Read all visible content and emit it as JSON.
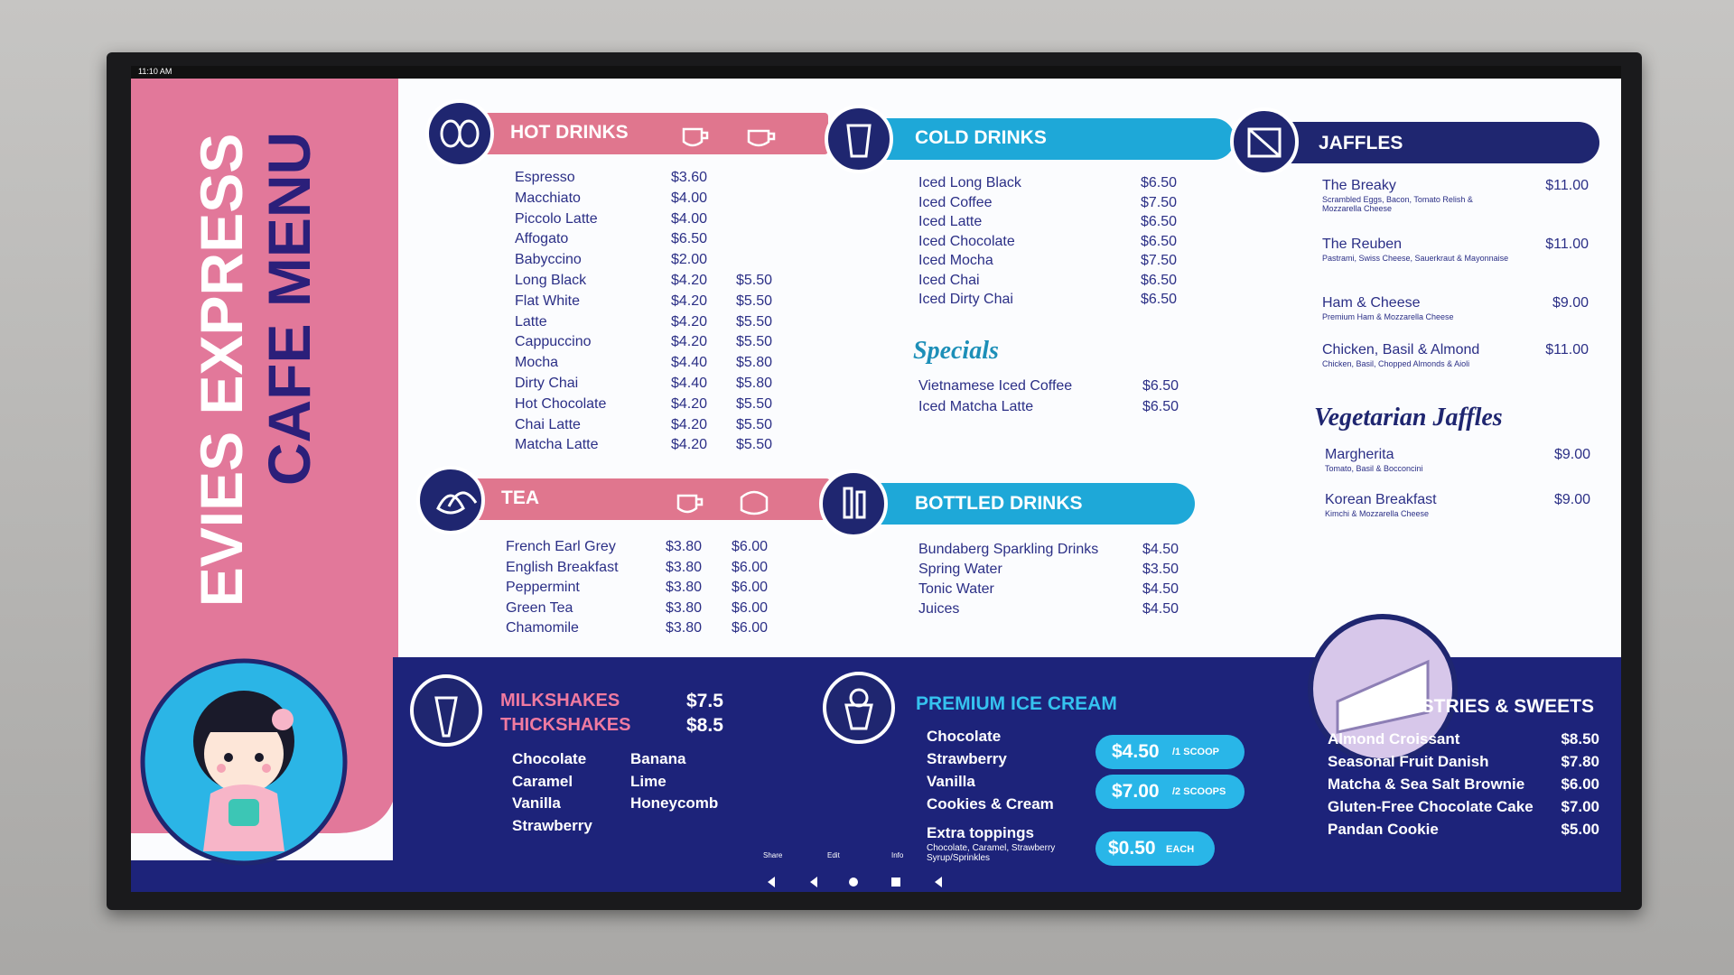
{
  "status_bar": {
    "time": "11:10 AM"
  },
  "brand": {
    "line1": "EVIES EXPRESS",
    "line2": "CAFE MENU"
  },
  "hot_drinks": {
    "title": "HOT DRINKS",
    "items": [
      {
        "name": "Espresso",
        "prices": [
          "$3.60"
        ]
      },
      {
        "name": "Macchiato",
        "prices": [
          "$4.00"
        ]
      },
      {
        "name": "Piccolo Latte",
        "prices": [
          "$4.00"
        ]
      },
      {
        "name": "Affogato",
        "prices": [
          "$6.50"
        ]
      },
      {
        "name": "Babyccino",
        "prices": [
          "$2.00"
        ]
      },
      {
        "name": "Long Black",
        "prices": [
          "$4.20",
          "$5.50"
        ]
      },
      {
        "name": "Flat White",
        "prices": [
          "$4.20",
          "$5.50"
        ]
      },
      {
        "name": "Latte",
        "prices": [
          "$4.20",
          "$5.50"
        ]
      },
      {
        "name": "Cappuccino",
        "prices": [
          "$4.20",
          "$5.50"
        ]
      },
      {
        "name": "Mocha",
        "prices": [
          "$4.40",
          "$5.80"
        ]
      },
      {
        "name": "Dirty Chai",
        "prices": [
          "$4.40",
          "$5.80"
        ]
      },
      {
        "name": "Hot Chocolate",
        "prices": [
          "$4.20",
          "$5.50"
        ]
      },
      {
        "name": "Chai Latte",
        "prices": [
          "$4.20",
          "$5.50"
        ]
      },
      {
        "name": "Matcha Latte",
        "prices": [
          "$4.20",
          "$5.50"
        ]
      }
    ]
  },
  "tea": {
    "title": "TEA",
    "items": [
      {
        "name": "French Earl Grey",
        "prices": [
          "$3.80",
          "$6.00"
        ]
      },
      {
        "name": "English Breakfast",
        "prices": [
          "$3.80",
          "$6.00"
        ]
      },
      {
        "name": "Peppermint",
        "prices": [
          "$3.80",
          "$6.00"
        ]
      },
      {
        "name": "Green Tea",
        "prices": [
          "$3.80",
          "$6.00"
        ]
      },
      {
        "name": "Chamomile",
        "prices": [
          "$3.80",
          "$6.00"
        ]
      }
    ]
  },
  "cold_drinks": {
    "title": "COLD DRINKS",
    "items": [
      {
        "name": "Iced Long Black",
        "prices": [
          "$6.50"
        ]
      },
      {
        "name": "Iced Coffee",
        "prices": [
          "$7.50"
        ]
      },
      {
        "name": "Iced Latte",
        "prices": [
          "$6.50"
        ]
      },
      {
        "name": "Iced Chocolate",
        "prices": [
          "$6.50"
        ]
      },
      {
        "name": "Iced Mocha",
        "prices": [
          "$7.50"
        ]
      },
      {
        "name": "Iced Chai",
        "prices": [
          "$6.50"
        ]
      },
      {
        "name": "Iced Dirty Chai",
        "prices": [
          "$6.50"
        ]
      }
    ]
  },
  "specials": {
    "title": "Specials",
    "items": [
      {
        "name": "Vietnamese Iced Coffee",
        "prices": [
          "$6.50"
        ]
      },
      {
        "name": "Iced Matcha Latte",
        "prices": [
          "$6.50"
        ]
      }
    ]
  },
  "bottled_drinks": {
    "title": "BOTTLED DRINKS",
    "items": [
      {
        "name": "Bundaberg Sparkling Drinks",
        "prices": [
          "$4.50"
        ]
      },
      {
        "name": "Spring Water",
        "prices": [
          "$3.50"
        ]
      },
      {
        "name": "Tonic Water",
        "prices": [
          "$4.50"
        ]
      },
      {
        "name": "Juices",
        "prices": [
          "$4.50"
        ]
      }
    ]
  },
  "jaffles": {
    "title": "JAFFLES",
    "items": [
      {
        "name": "The Breaky",
        "prices": [
          "$11.00"
        ],
        "description": "Scrambled Eggs, Bacon, Tomato Relish & Mozzarella Cheese"
      },
      {
        "name": "The Reuben",
        "prices": [
          "$11.00"
        ],
        "description": "Pastrami, Swiss Cheese, Sauerkraut & Mayonnaise"
      },
      {
        "name": "Ham & Cheese",
        "prices": [
          "$9.00"
        ],
        "description": "Premium Ham & Mozzarella Cheese"
      },
      {
        "name": "Chicken, Basil & Almond",
        "prices": [
          "$11.00"
        ],
        "description": "Chicken, Basil, Chopped Almonds & Aioli"
      }
    ]
  },
  "vegetarian_jaffles": {
    "title": "Vegetarian Jaffles",
    "items": [
      {
        "name": "Margherita",
        "prices": [
          "$9.00"
        ],
        "description": "Tomato, Basil & Bocconcini"
      },
      {
        "name": "Korean Breakfast",
        "prices": [
          "$9.00"
        ],
        "description": "Kimchi & Mozzarella Cheese"
      }
    ]
  },
  "shakes": {
    "lines": [
      {
        "name": "MILKSHAKES",
        "price": "$7.5"
      },
      {
        "name": "THICKSHAKES",
        "price": "$8.5"
      }
    ],
    "flavours": [
      "Chocolate",
      "Caramel",
      "Vanilla",
      "Strawberry",
      "Banana",
      "Lime",
      "Honeycomb"
    ]
  },
  "ice_cream": {
    "title": "PREMIUM ICE CREAM",
    "flavours": [
      "Chocolate",
      "Strawberry",
      "Vanilla",
      "Cookies & Cream"
    ],
    "prices": [
      {
        "price": "$4.50",
        "unit": "/1 SCOOP"
      },
      {
        "price": "$7.00",
        "unit": "/2 SCOOPS"
      }
    ],
    "toppings": {
      "title": "Extra toppings",
      "detail": "Chocolate, Caramel, Strawberry Syrup/Sprinkles",
      "price": "$0.50",
      "unit": "EACH"
    }
  },
  "pastries": {
    "title": "PASTRIES & SWEETS",
    "items": [
      {
        "name": "Almond Croissant",
        "prices": [
          "$8.50"
        ]
      },
      {
        "name": "Seasonal Fruit Danish",
        "prices": [
          "$7.80"
        ]
      },
      {
        "name": "Matcha & Sea Salt Brownie",
        "prices": [
          "$6.00"
        ]
      },
      {
        "name": "Gluten-Free Chocolate Cake",
        "prices": [
          "$7.00"
        ]
      },
      {
        "name": "Pandan Cookie",
        "prices": [
          "$5.00"
        ]
      }
    ]
  },
  "nav": {
    "actions": [
      "Share",
      "Edit",
      "Info"
    ]
  }
}
